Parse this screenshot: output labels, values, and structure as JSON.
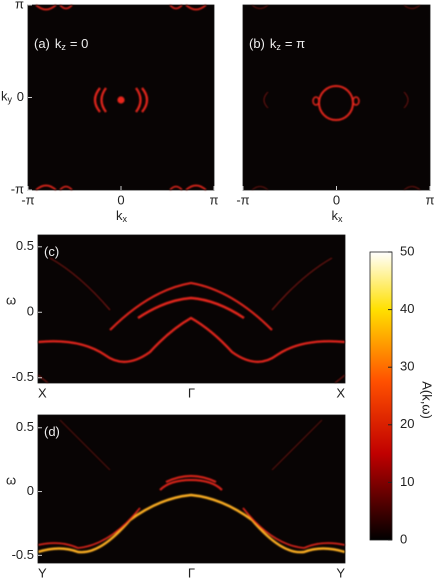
{
  "chart_data": [
    {
      "type": "heatmap",
      "panel_label": {
        "tag": "(a)",
        "var": "k",
        "sub": "z",
        "rest": "= 0"
      },
      "xlabel": {
        "var": "k",
        "sub": "x"
      },
      "ylabel": {
        "var": "k",
        "sub": "y"
      },
      "xlim": [
        -3.14159,
        3.14159
      ],
      "xticks": [
        {
          "value": -3.14159,
          "label": "-π"
        },
        0,
        {
          "value": 3.14159,
          "label": "π"
        }
      ],
      "ylim": [
        -3.14159,
        3.14159
      ],
      "yticks": [
        {
          "value": -3.14159,
          "label": "-π"
        },
        0,
        {
          "value": 3.14159,
          "label": "π"
        }
      ]
    },
    {
      "type": "heatmap",
      "panel_label": {
        "tag": "(b)",
        "var": "k",
        "sub": "z",
        "rest": "= π"
      },
      "xlabel": {
        "var": "k",
        "sub": "x"
      },
      "xlim": [
        -3.14159,
        3.14159
      ],
      "xticks": [
        {
          "value": -3.14159,
          "label": "-π"
        },
        0,
        {
          "value": 3.14159,
          "label": "π"
        }
      ],
      "ylim": [
        -3.14159,
        3.14159
      ]
    },
    {
      "type": "dispersion",
      "panel_label": {
        "tag": "(c)"
      },
      "ylabel": {
        "var": "ω"
      },
      "categories": [
        "X",
        "Γ",
        "X"
      ],
      "ylim": [
        -0.54,
        0.59
      ],
      "yticks": [
        0.5,
        0,
        -0.5
      ]
    },
    {
      "type": "dispersion",
      "panel_label": {
        "tag": "(d)"
      },
      "ylabel": {
        "var": "ω"
      },
      "categories": [
        "Y",
        "Γ",
        "Y"
      ],
      "ylim": [
        -0.56,
        0.6
      ],
      "yticks": [
        0.5,
        0,
        -0.5
      ]
    },
    {
      "type": "colorbar",
      "label": "A(k,ω)",
      "zlim": [
        0,
        50
      ],
      "zticks": [
        0,
        10,
        20,
        30,
        40,
        50
      ]
    }
  ]
}
